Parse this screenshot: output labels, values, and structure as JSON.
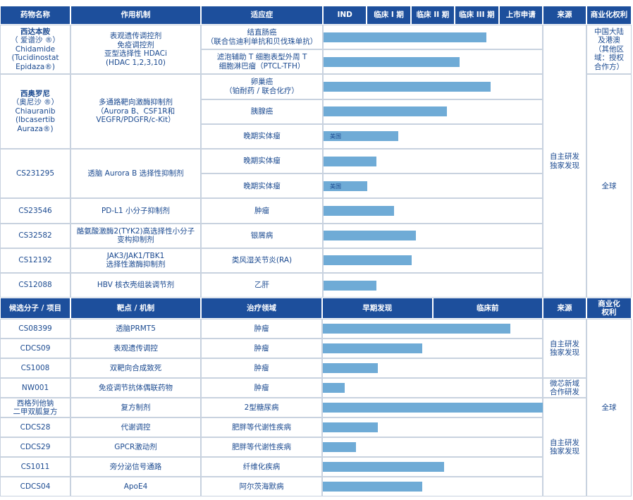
{
  "clinical": {
    "headers": {
      "drug": "药物名称",
      "mechanism": "作用机制",
      "indication": "适应症",
      "stages": [
        "IND",
        "临床 I 期",
        "临床 II 期",
        "临床 III 期",
        "上市申请"
      ],
      "source": "来源",
      "rights": "商业化权利"
    },
    "source": [
      "自主研发",
      "独家发现"
    ],
    "rights_groups": [
      {
        "rights": [
          "中国大陆",
          "及港澳",
          "（其他区",
          "域：授权",
          "合作方）"
        ],
        "drugs": [
          {
            "name": [
              "西达本胺",
              "（ 爱谱沙 ®）",
              "Chidamide",
              "(Tucidinostat",
              "Epidaza®)"
            ],
            "mechanism": [
              "表观遗传调控剂",
              "免疫调控剂",
              "亚型选择性 HDACi",
              "(HDAC 1,2,3,10)"
            ],
            "indications": [
              {
                "name": [
                  "结直肠癌",
                  "（联合信迪利单抗和贝伐珠单抗）"
                ],
                "progress": 3.7
              },
              {
                "name": [
                  "滤泡辅助 T 细胞表型外周 T",
                  "细胞淋巴瘤（PTCL-TFH）"
                ],
                "progress": 3.1
              }
            ]
          }
        ]
      },
      {
        "rights": "全球",
        "drugs": [
          {
            "name": [
              "西奥罗尼",
              "（奥尼沙 ®）",
              "Chiauranib",
              "(Ibcasertib",
              "Auraza®)"
            ],
            "mechanism": [
              "多通路靶向激酶抑制剂",
              "（Aurora B、CSF1R和",
              "VEGFR/PDGFR/c-Kit）"
            ],
            "indications": [
              {
                "name": [
                  "卵巢癌",
                  "（铂耐药 / 联合化疗）"
                ],
                "progress": 3.8
              },
              {
                "name": "胰腺癌",
                "progress": 2.8
              },
              {
                "name": "晚期实体瘤",
                "progress": 1.7,
                "note": "美国"
              }
            ]
          },
          {
            "name": "CS231295",
            "mechanism": "透脑 Aurora B 选择性抑制剂",
            "indications": [
              {
                "name": "晚期实体瘤",
                "progress": 1.2
              },
              {
                "name": "晚期实体瘤",
                "progress": 1.0,
                "note": "美国"
              }
            ]
          },
          {
            "name": "CS23546",
            "mechanism": "PD-L1 小分子抑制剂",
            "indications": [
              {
                "name": "肿瘤",
                "progress": 1.6
              }
            ]
          },
          {
            "name": "CS32582",
            "mechanism": [
              "酪氨酸激酶2(TYK2)高选择性小分子",
              "变构抑制剂"
            ],
            "indications": [
              {
                "name": "银屑病",
                "progress": 2.1
              }
            ]
          },
          {
            "name": "CS12192",
            "mechanism": [
              "JAK3/JAK1/TBK1",
              "选择性激酶抑制剂"
            ],
            "indications": [
              {
                "name": "类风湿关节炎(RA)",
                "progress": 2.0
              }
            ]
          },
          {
            "name": "CS12088",
            "mechanism": "HBV 核衣壳组装调节剂",
            "indications": [
              {
                "name": "乙肝",
                "progress": 1.2
              }
            ]
          }
        ]
      }
    ]
  },
  "discovery": {
    "headers": {
      "candidate": "候选分子 / 项目",
      "target": "靶点 / 机制",
      "area": "治疗领域",
      "stages": [
        "早期发现",
        "临床前"
      ],
      "source": "来源",
      "rights": [
        "商业化",
        "权利"
      ]
    },
    "rights": "全球",
    "source_groups": [
      {
        "source": [
          "自主研发",
          "独家发现"
        ],
        "candidates": [
          {
            "id": "CS08399",
            "target": "透脑PRMT5",
            "area": "肿瘤",
            "progress": 1.7
          },
          {
            "id": "CDCS09",
            "target": "表观遗传调控",
            "area": "肿瘤",
            "progress": 0.9
          },
          {
            "id": "CS1008",
            "target": "双靶向合成致死",
            "area": "肿瘤",
            "progress": 0.5
          }
        ]
      },
      {
        "source": [
          "微芯新域",
          "合作研发"
        ],
        "candidates": [
          {
            "id": "NW001",
            "target": "免疫调节抗体偶联药物",
            "area": "肿瘤",
            "progress": 0.2
          }
        ]
      },
      {
        "source": [
          "自主研发",
          "独家发现"
        ],
        "candidates": [
          {
            "id": [
              "西格列他钠",
              "二甲双胍复方"
            ],
            "target": "复方制剂",
            "area": "2型糖尿病",
            "progress": 2.0
          },
          {
            "id": "CDCS28",
            "target": "代谢调控",
            "area": "肥胖等代谢性疾病",
            "progress": 0.5
          },
          {
            "id": "CDCS29",
            "target": "GPCR激动剂",
            "area": "肥胖等代谢性疾病",
            "progress": 0.3
          },
          {
            "id": "CS1011",
            "target": "旁分泌信号通路",
            "area": "纤维化疾病",
            "progress": 1.1
          },
          {
            "id": "CDCS04",
            "target": "ApoE4",
            "area": "阿尔茨海默病",
            "progress": 0.9
          }
        ]
      }
    ]
  }
}
